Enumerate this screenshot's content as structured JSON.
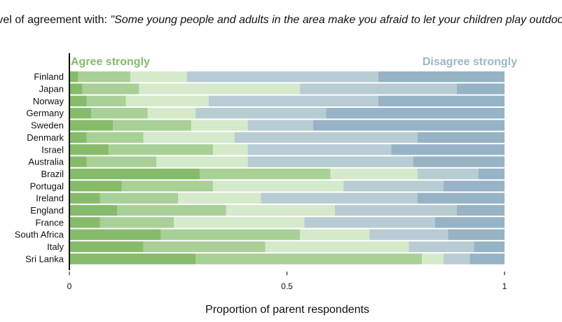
{
  "chart_data": {
    "type": "bar",
    "stacked": true,
    "orientation": "horizontal",
    "title_prefix": "Level of agreement with: ",
    "title_quote": "\"Some young people and adults in the area make you afraid to let your children play outdoors\"",
    "xlabel": "Proportion of parent respondents",
    "ylabel": "",
    "xlim": [
      0,
      1
    ],
    "x_ticks": [
      "0",
      "0.5",
      "1"
    ],
    "end_label_left": "Agree strongly",
    "end_label_right": "Disagree strongly",
    "categories": [
      "Finland",
      "Japan",
      "Norway",
      "Germany",
      "Sweden",
      "Denmark",
      "Israel",
      "Australia",
      "Brazil",
      "Portugal",
      "Ireland",
      "England",
      "France",
      "South Africa",
      "Italy",
      "Sri Lanka"
    ],
    "series": [
      {
        "color": "#86bb6a",
        "values": [
          0.02,
          0.03,
          0.04,
          0.05,
          0.1,
          0.04,
          0.09,
          0.04,
          0.3,
          0.12,
          0.07,
          0.11,
          0.07,
          0.21,
          0.17,
          0.29
        ]
      },
      {
        "color": "#a9d096",
        "values": [
          0.12,
          0.13,
          0.09,
          0.13,
          0.18,
          0.13,
          0.24,
          0.16,
          0.3,
          0.21,
          0.18,
          0.25,
          0.17,
          0.32,
          0.28,
          0.52
        ]
      },
      {
        "color": "#d5e9cb",
        "values": [
          0.13,
          0.37,
          0.19,
          0.11,
          0.13,
          0.21,
          0.08,
          0.21,
          0.2,
          0.3,
          0.19,
          0.25,
          0.3,
          0.16,
          0.33,
          0.05
        ]
      },
      {
        "color": "#b8ccd3",
        "values": [
          0.44,
          0.36,
          0.39,
          0.3,
          0.15,
          0.42,
          0.33,
          0.38,
          0.14,
          0.23,
          0.36,
          0.28,
          0.3,
          0.18,
          0.15,
          0.06
        ]
      },
      {
        "color": "#97b3c6",
        "values": [
          0.29,
          0.11,
          0.29,
          0.41,
          0.44,
          0.2,
          0.26,
          0.21,
          0.06,
          0.14,
          0.2,
          0.11,
          0.16,
          0.13,
          0.07,
          0.08
        ]
      }
    ],
    "grid": false,
    "legend": "none"
  }
}
